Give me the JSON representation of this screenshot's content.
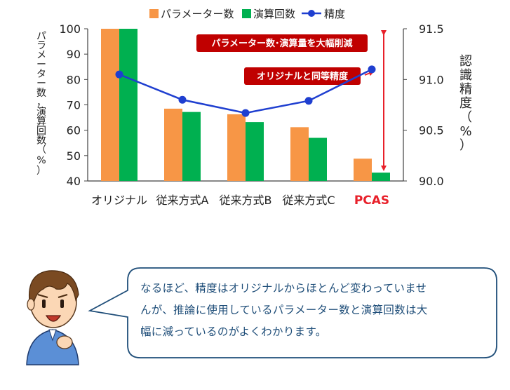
{
  "legend": {
    "params": "パラメーター数",
    "ops": "演算回数",
    "accuracy": "精度"
  },
  "y_left_label": [
    "パ",
    "ラ",
    "メ",
    "ー",
    "タ",
    "ー",
    "数",
    "，",
    "演",
    "算",
    "回",
    "数",
    "（",
    "%",
    "）"
  ],
  "y_right_label": [
    "認",
    "識",
    "精",
    "度",
    "（",
    "%",
    "）"
  ],
  "annotations": {
    "reduction": "パラメーター数･演算量を大幅削減",
    "same_accuracy": "オリジナルと同等精度"
  },
  "colors": {
    "params": "#f79646",
    "ops": "#00b050",
    "accuracy": "#1f3fd0",
    "annotation_bg": "#c00000",
    "arrow": "#e8202a",
    "pcas_label": "#e8202a"
  },
  "chart_data": {
    "type": "bar",
    "categories": [
      "オリジナル",
      "従来方式A",
      "従来方式B",
      "従来方式C",
      "PCAS"
    ],
    "series": [
      {
        "name": "パラメーター数",
        "values": [
          100,
          68.5,
          66.3,
          61.2,
          48.8
        ]
      },
      {
        "name": "演算回数",
        "values": [
          100,
          67.2,
          63.2,
          57.0,
          43.3
        ]
      },
      {
        "name": "精度",
        "axis": "right",
        "type": "line",
        "values": [
          91.05,
          90.8,
          90.67,
          90.79,
          91.1
        ]
      }
    ],
    "ylim": [
      40,
      100
    ],
    "yticks": [
      40,
      50,
      60,
      70,
      80,
      90,
      100
    ],
    "y2lim": [
      90.0,
      91.5
    ],
    "y2ticks": [
      "90.0",
      "90.5",
      "91.0",
      "91.5"
    ],
    "highlight_category": "PCAS"
  },
  "speech": {
    "lines": [
      "なるほど、精度はオリジナルからほとんど変わっていませ",
      "んが、推論に使用しているパラメーター数と演算回数は大",
      "幅に減っているのがよくわかります。"
    ]
  }
}
